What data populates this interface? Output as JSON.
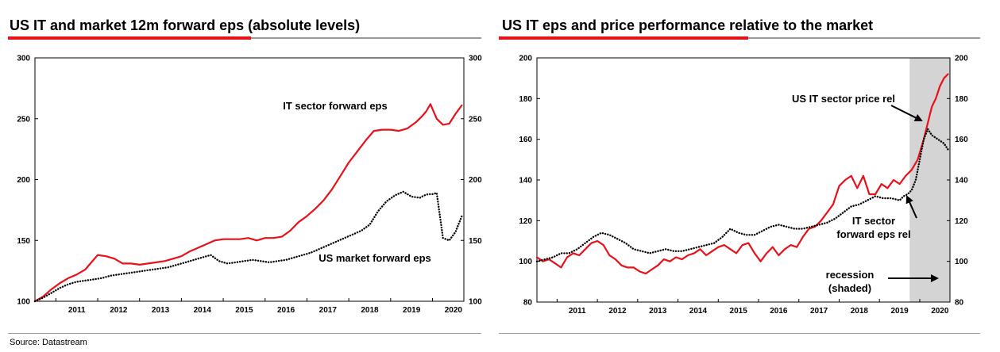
{
  "source": "Source: Datastream",
  "chart_data": [
    {
      "type": "line",
      "title": "US IT and market 12m forward eps (absolute levels)",
      "x_ticks": [
        "2011",
        "2012",
        "2013",
        "2014",
        "2015",
        "2016",
        "2017",
        "2018",
        "2019",
        "2020"
      ],
      "xlim": [
        2010.5,
        2020.75
      ],
      "ylim": [
        100,
        300
      ],
      "y_ticks": [
        "100",
        "150",
        "200",
        "250",
        "300"
      ],
      "y_ticks_right": [
        "100",
        "150",
        "200",
        "250",
        "300"
      ],
      "annotations": [
        "IT sector forward eps",
        "US market forward eps"
      ],
      "series": [
        {
          "name": "IT sector forward eps",
          "color": "#e8111a",
          "style": "solid",
          "x": [
            2010.5,
            2010.7,
            2010.9,
            2011.1,
            2011.3,
            2011.5,
            2011.7,
            2011.85,
            2012.0,
            2012.2,
            2012.4,
            2012.6,
            2012.8,
            2013.0,
            2013.2,
            2013.4,
            2013.6,
            2013.8,
            2014.0,
            2014.2,
            2014.4,
            2014.6,
            2014.8,
            2015.0,
            2015.2,
            2015.4,
            2015.6,
            2015.8,
            2016.0,
            2016.2,
            2016.4,
            2016.6,
            2016.8,
            2017.0,
            2017.2,
            2017.4,
            2017.6,
            2017.8,
            2018.0,
            2018.2,
            2018.4,
            2018.6,
            2018.8,
            2019.0,
            2019.2,
            2019.4,
            2019.6,
            2019.75,
            2019.85,
            2019.95,
            2020.1,
            2020.25,
            2020.4,
            2020.55,
            2020.7
          ],
          "values": [
            100,
            104,
            110,
            115,
            119,
            122,
            126,
            132,
            138,
            137,
            135,
            131,
            131,
            130,
            131,
            132,
            133,
            135,
            137,
            141,
            144,
            147,
            150,
            151,
            151,
            151,
            152,
            150,
            152,
            152,
            153,
            158,
            165,
            170,
            176,
            183,
            192,
            203,
            214,
            223,
            232,
            240,
            241,
            241,
            240,
            242,
            247,
            252,
            256,
            262,
            250,
            245,
            246,
            254,
            261
          ]
        },
        {
          "name": "US market forward eps",
          "color": "#000000",
          "style": "dotted",
          "x": [
            2010.5,
            2010.7,
            2010.9,
            2011.1,
            2011.3,
            2011.5,
            2011.7,
            2011.9,
            2012.1,
            2012.3,
            2012.5,
            2012.7,
            2012.9,
            2013.1,
            2013.3,
            2013.5,
            2013.7,
            2013.9,
            2014.1,
            2014.3,
            2014.5,
            2014.7,
            2014.9,
            2015.1,
            2015.3,
            2015.5,
            2015.7,
            2015.9,
            2016.1,
            2016.3,
            2016.5,
            2016.7,
            2016.9,
            2017.1,
            2017.3,
            2017.5,
            2017.7,
            2017.9,
            2018.1,
            2018.3,
            2018.5,
            2018.7,
            2018.9,
            2019.1,
            2019.3,
            2019.5,
            2019.7,
            2019.8,
            2019.9,
            2020.0,
            2020.1,
            2020.25,
            2020.4,
            2020.55,
            2020.7
          ],
          "values": [
            100,
            103,
            107,
            111,
            114,
            116,
            117,
            118,
            119,
            121,
            122,
            123,
            124,
            125,
            126,
            127,
            128,
            130,
            132,
            134,
            136,
            138,
            133,
            131,
            132,
            133,
            134,
            133,
            132,
            133,
            134,
            136,
            138,
            140,
            143,
            146,
            149,
            152,
            155,
            158,
            163,
            174,
            182,
            187,
            190,
            186,
            185,
            187,
            188,
            188,
            189,
            152,
            150,
            157,
            170
          ]
        }
      ]
    },
    {
      "type": "line",
      "title": "US IT eps and price performance relative to the market",
      "x_ticks": [
        "2011",
        "2012",
        "2013",
        "2014",
        "2015",
        "2016",
        "2017",
        "2018",
        "2019",
        "2020"
      ],
      "xlim": [
        2010.5,
        2020.75
      ],
      "ylim": [
        80,
        200
      ],
      "y_ticks": [
        "80",
        "100",
        "120",
        "140",
        "160",
        "180",
        "200"
      ],
      "y_ticks_right": [
        "80",
        "100",
        "120",
        "140",
        "160",
        "180",
        "200"
      ],
      "annotations": [
        "US IT sector price rel",
        "IT sector",
        "forward eps rel",
        "recession",
        "(shaded)"
      ],
      "recession": [
        2019.75,
        2020.75
      ],
      "series": [
        {
          "name": "US IT sector price rel",
          "color": "#e8111a",
          "style": "solid",
          "x": [
            2010.5,
            2010.65,
            2010.8,
            2010.95,
            2011.1,
            2011.25,
            2011.4,
            2011.55,
            2011.7,
            2011.85,
            2012.0,
            2012.15,
            2012.3,
            2012.45,
            2012.6,
            2012.75,
            2012.9,
            2013.05,
            2013.2,
            2013.35,
            2013.5,
            2013.65,
            2013.8,
            2013.95,
            2014.1,
            2014.25,
            2014.4,
            2014.55,
            2014.7,
            2014.85,
            2015.0,
            2015.15,
            2015.3,
            2015.45,
            2015.6,
            2015.75,
            2015.9,
            2016.05,
            2016.2,
            2016.35,
            2016.5,
            2016.65,
            2016.8,
            2016.95,
            2017.1,
            2017.25,
            2017.4,
            2017.55,
            2017.7,
            2017.85,
            2018.0,
            2018.15,
            2018.3,
            2018.45,
            2018.6,
            2018.75,
            2018.9,
            2019.05,
            2019.2,
            2019.35,
            2019.5,
            2019.65,
            2019.8,
            2019.95,
            2020.1,
            2020.2,
            2020.3,
            2020.4,
            2020.5,
            2020.6,
            2020.7
          ],
          "values": [
            102,
            100,
            101,
            99,
            97,
            102,
            104,
            103,
            106,
            109,
            110,
            108,
            103,
            101,
            98,
            97,
            97,
            95,
            94,
            96,
            98,
            101,
            100,
            102,
            101,
            103,
            104,
            106,
            103,
            105,
            107,
            108,
            106,
            104,
            108,
            109,
            104,
            100,
            104,
            107,
            103,
            106,
            108,
            107,
            112,
            116,
            117,
            120,
            124,
            128,
            137,
            140,
            142,
            136,
            142,
            133,
            133,
            138,
            136,
            140,
            138,
            142,
            145,
            150,
            160,
            168,
            176,
            180,
            186,
            190,
            192
          ]
        },
        {
          "name": "IT sector forward eps rel",
          "color": "#000000",
          "style": "dotted",
          "x": [
            2010.5,
            2010.7,
            2010.9,
            2011.1,
            2011.3,
            2011.5,
            2011.7,
            2011.9,
            2012.1,
            2012.3,
            2012.5,
            2012.7,
            2012.9,
            2013.1,
            2013.3,
            2013.5,
            2013.7,
            2013.9,
            2014.1,
            2014.3,
            2014.5,
            2014.7,
            2014.9,
            2015.1,
            2015.3,
            2015.5,
            2015.7,
            2015.9,
            2016.1,
            2016.3,
            2016.5,
            2016.7,
            2016.9,
            2017.1,
            2017.3,
            2017.5,
            2017.7,
            2017.9,
            2018.1,
            2018.3,
            2018.5,
            2018.7,
            2018.9,
            2019.1,
            2019.3,
            2019.5,
            2019.6,
            2019.7,
            2019.8,
            2019.9,
            2020.0,
            2020.1,
            2020.2,
            2020.3,
            2020.45,
            2020.6,
            2020.7
          ],
          "values": [
            100,
            101,
            102,
            104,
            104,
            106,
            109,
            112,
            114,
            113,
            111,
            109,
            106,
            105,
            104,
            105,
            106,
            105,
            105,
            106,
            107,
            108,
            109,
            112,
            116,
            114,
            113,
            113,
            115,
            117,
            118,
            117,
            116,
            116,
            117,
            118,
            119,
            121,
            124,
            127,
            128,
            130,
            132,
            131,
            131,
            130,
            132,
            133,
            135,
            140,
            150,
            160,
            165,
            162,
            160,
            158,
            155
          ]
        }
      ]
    }
  ]
}
